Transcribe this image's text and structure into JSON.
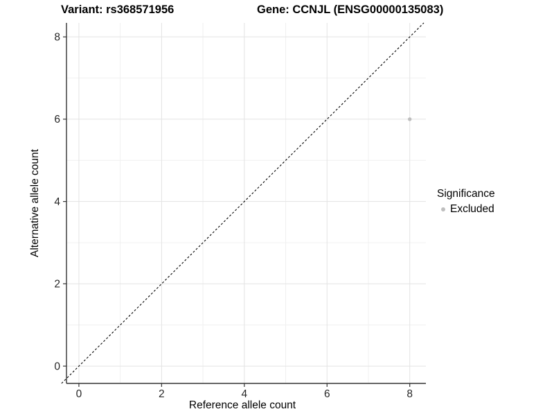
{
  "header": {
    "variant_title": "Variant: rs368571956",
    "gene_title": "Gene: CCNJL (ENSG00000135083)"
  },
  "chart_data": {
    "type": "scatter",
    "title": "Variant: rs368571956 — Gene: CCNJL (ENSG00000135083)",
    "xlabel": "Reference allele count",
    "ylabel": "Alternative allele count",
    "xlim": [
      -0.3,
      8.39
    ],
    "ylim": [
      -0.42,
      8.34
    ],
    "x_ticks": [
      0,
      2,
      4,
      6,
      8
    ],
    "y_ticks": [
      0,
      2,
      4,
      6,
      8
    ],
    "x_minor_ticks": [
      1,
      3,
      5,
      7
    ],
    "y_minor_ticks": [
      1,
      3,
      5,
      7
    ],
    "grid": "major and minor gridlines on white panel",
    "identity_line": {
      "style": "dashed",
      "slope": 1,
      "intercept": 0,
      "color": "#000000"
    },
    "series": [
      {
        "name": "Excluded",
        "color": "#bebebe",
        "points": [
          {
            "x": 8,
            "y": 6
          }
        ]
      }
    ],
    "legend": {
      "title": "Significance",
      "position": "right",
      "items": [
        {
          "label": "Excluded",
          "color": "#bebebe"
        }
      ]
    },
    "style": {
      "point_radius_px": 2.7,
      "grid_major_color": "#e3e3e3",
      "grid_minor_color": "#f0f0f0",
      "axis_line_color": "#333333",
      "tick_label_color": "#262626",
      "background": "#ffffff"
    }
  }
}
